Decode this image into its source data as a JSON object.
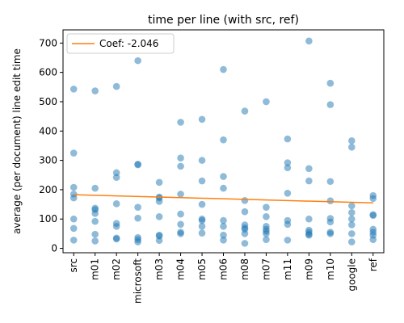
{
  "chart_data": {
    "type": "scatter",
    "title": "time per line (with src, ref)",
    "xlabel": "",
    "ylabel": "average (per document) line edit time",
    "categories": [
      "src",
      "m01",
      "m02",
      "microsoft",
      "m03",
      "m04",
      "m05",
      "m06",
      "m08",
      "m07",
      "m11",
      "m09",
      "m10",
      "google",
      "ref"
    ],
    "ylim": [
      -15,
      745
    ],
    "yticks": [
      0,
      100,
      200,
      300,
      400,
      500,
      600,
      700
    ],
    "grid": false,
    "legend_position": "top-left",
    "point_color": "#1f77b4",
    "line_color": "#ff7f0e",
    "series": [
      {
        "name": "",
        "points": [
          {
            "x": "src",
            "values": [
              543,
              325,
              208,
              185,
              172,
              100,
              68,
              28
            ]
          },
          {
            "x": "m01",
            "values": [
              537,
              205,
              137,
              132,
              119,
              92,
              48,
              25
            ]
          },
          {
            "x": "m02",
            "values": [
              552,
              258,
              242,
              152,
              85,
              75,
              35,
              32
            ]
          },
          {
            "x": "microsoft",
            "values": [
              640,
              287,
              285,
              140,
              103,
              37,
              30,
              22
            ]
          },
          {
            "x": "m03",
            "values": [
              225,
              175,
              172,
              160,
              108,
              45,
              42,
              27
            ]
          },
          {
            "x": "m04",
            "values": [
              430,
              308,
              280,
              185,
              117,
              82,
              55,
              50
            ]
          },
          {
            "x": "m05",
            "values": [
              440,
              300,
              230,
              150,
              100,
              95,
              75,
              52
            ]
          },
          {
            "x": "m06",
            "values": [
              610,
              370,
              245,
              205,
              95,
              75,
              45,
              28
            ]
          },
          {
            "x": "m08",
            "values": [
              468,
              163,
              125,
              80,
              70,
              65,
              50,
              17
            ]
          },
          {
            "x": "m07",
            "values": [
              500,
              140,
              108,
              75,
              65,
              58,
              50,
              30
            ]
          },
          {
            "x": "m11",
            "values": [
              373,
              292,
              275,
              188,
              95,
              82,
              28
            ]
          },
          {
            "x": "m09",
            "values": [
              707,
              272,
              230,
              100,
              62,
              55,
              48,
              45
            ]
          },
          {
            "x": "m10",
            "values": [
              563,
              490,
              228,
              162,
              102,
              90,
              55,
              50
            ]
          },
          {
            "x": "google",
            "values": [
              367,
              345,
              145,
              122,
              100,
              80,
              50,
              22
            ]
          },
          {
            "x": "ref",
            "values": [
              180,
              170,
              115,
              112,
              65,
              55,
              45,
              30
            ]
          }
        ]
      }
    ],
    "fit_line": {
      "label": "Coef: -2.046",
      "start": {
        "x": "src",
        "y": 183
      },
      "end": {
        "x": "ref",
        "y": 155
      }
    }
  }
}
